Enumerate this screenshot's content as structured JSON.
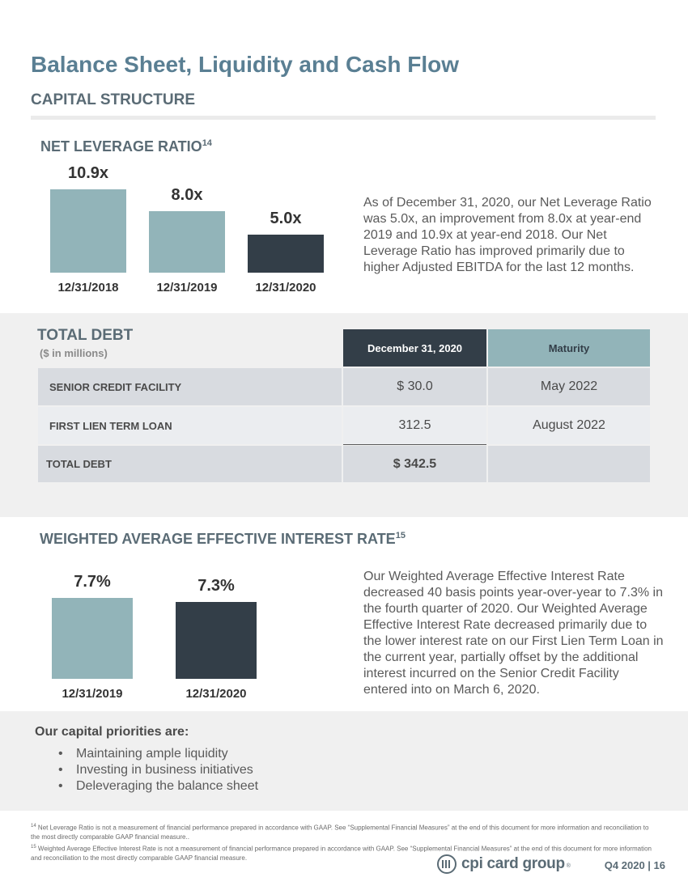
{
  "header": {
    "title": "Balance Sheet, Liquidity and Cash Flow",
    "section": "CAPITAL STRUCTURE"
  },
  "leverage": {
    "title": "NET LEVERAGE RATIO",
    "footnote_ref": "14",
    "paragraph": "As of December 31, 2020, our Net Leverage Ratio was 5.0x, an improvement from 8.0x at year-end 2019 and 10.9x at year-end 2018. Our Net Leverage Ratio has improved primarily due to higher Adjusted EBITDA for the last 12 months."
  },
  "debt": {
    "title": "TOTAL DEBT",
    "subtitle": "($ in millions)",
    "col_date": "December 31, 2020",
    "col_maturity": "Maturity",
    "rows": [
      {
        "label": "SENIOR CREDIT FACILITY",
        "value": "$ 30.0",
        "maturity": "May 2022"
      },
      {
        "label": "FIRST LIEN TERM LOAN",
        "value": "312.5",
        "maturity": "August 2022"
      },
      {
        "label": "TOTAL DEBT",
        "value": "$ 342.5",
        "maturity": ""
      }
    ]
  },
  "interest": {
    "title": "WEIGHTED AVERAGE EFFECTIVE INTEREST RATE",
    "footnote_ref": "15",
    "paragraph": "Our Weighted Average Effective Interest Rate decreased 40 basis points year-over-year to 7.3% in the fourth quarter of 2020. Our Weighted Average Effective Interest Rate decreased primarily due to the lower interest rate on our First Lien Term Loan in the current year, partially offset by the additional interest incurred on the Senior Credit Facility entered into on March 6, 2020."
  },
  "priorities": {
    "title": "Our capital priorities are:",
    "bullet": "•",
    "items": [
      "Maintaining ample liquidity",
      "Investing in business initiatives",
      "Deleveraging the balance sheet"
    ]
  },
  "footnotes": {
    "fn14_num": "14",
    "fn14": "Net Leverage Ratio is not a measurement of financial performance prepared in accordance with GAAP. See “Supplemental Financial Measures” at the end of this document for more information and reconciliation to the most directly comparable GAAP financial measure..",
    "fn15_num": "15",
    "fn15": "Weighted Average Effective Interest Rate is not a measurement of financial performance prepared in accordance with GAAP. See “Supplemental Financial Measures” at the end of this document for more information and reconciliation to the most directly comparable GAAP financial measure."
  },
  "footer": {
    "logo_text": "cpi card group",
    "logo_reg": "®",
    "page": "Q4 2020 | 16"
  },
  "chart_data": [
    {
      "type": "bar",
      "categories": [
        "12/31/2018",
        "12/31/2019",
        "12/31/2020"
      ],
      "values": [
        10.9,
        8.0,
        5.0
      ],
      "value_labels": [
        "10.9x",
        "8.0x",
        "5.0x"
      ],
      "colors": [
        "#92b4b9",
        "#92b4b9",
        "#333e48"
      ],
      "title": "NET LEVERAGE RATIO",
      "grid": false
    },
    {
      "type": "bar",
      "categories": [
        "12/31/2019",
        "12/31/2020"
      ],
      "values": [
        7.7,
        7.3
      ],
      "value_labels": [
        "7.7%",
        "7.3%"
      ],
      "colors": [
        "#92b4b9",
        "#333e48"
      ],
      "title": "WEIGHTED AVERAGE EFFECTIVE INTEREST RATE",
      "grid": false
    }
  ]
}
